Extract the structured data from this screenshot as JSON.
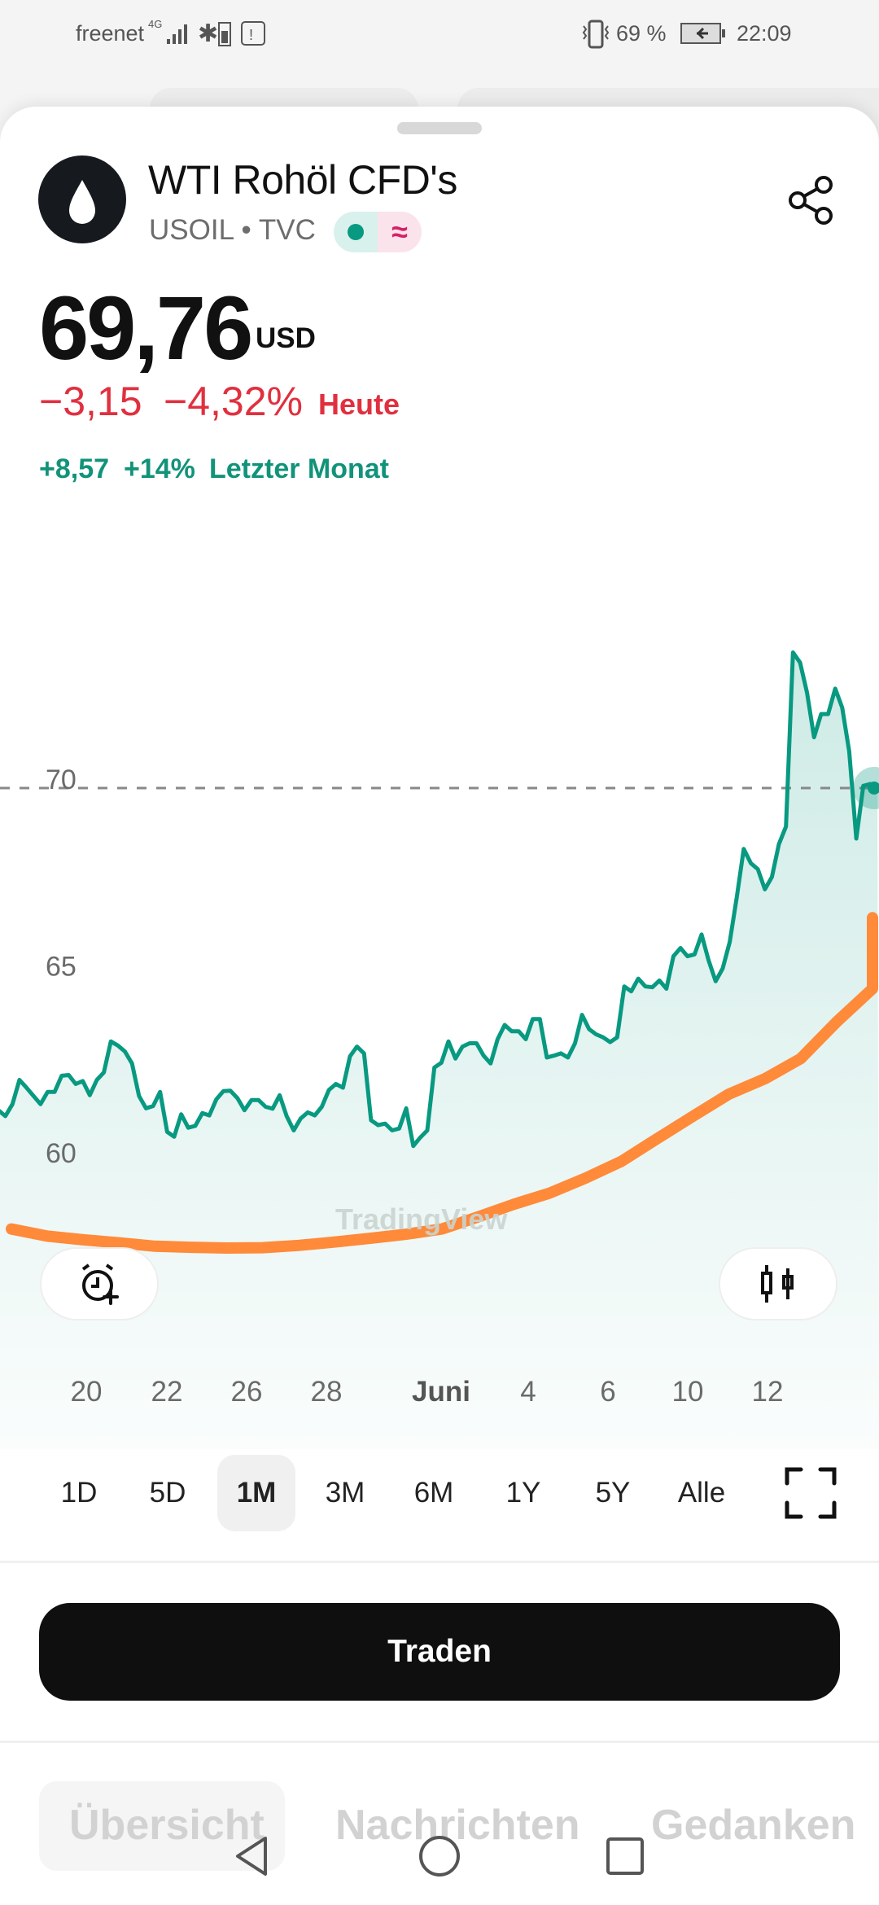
{
  "status_bar": {
    "carrier": "freenet",
    "network": "4G",
    "battery": "69 %",
    "time": "22:09"
  },
  "header": {
    "title": "WTI Rohöl CFD's",
    "symbol": "USOIL",
    "separator": "•",
    "exchange": "TVC",
    "logo_icon": "oil-drop-icon",
    "badge_icon": "approx-icon",
    "badge_text": "≈"
  },
  "quote": {
    "price": "69,76",
    "currency": "USD",
    "change_today": "−3,15",
    "change_today_pct": "−4,32%",
    "today_label": "Heute",
    "change_month": "+8,57",
    "change_month_pct": "+14%",
    "month_label": "Letzter Monat"
  },
  "colors": {
    "up": "#11937a",
    "down": "#e0303f",
    "line": "#089981",
    "ma": "#ff8a3a"
  },
  "chart_data": {
    "type": "line",
    "y_ticks": [
      "70",
      "65",
      "60"
    ],
    "y_tick_values": [
      70,
      65,
      60
    ],
    "x_ticks": [
      "20",
      "22",
      "26",
      "28",
      "Juni",
      "4",
      "6",
      "10",
      "12"
    ],
    "current_price": 69.76,
    "watermark": "TradingView",
    "series": [
      {
        "values": [
          61.14,
          60.98,
          61.3,
          61.95,
          61.74,
          61.52,
          61.3,
          61.63,
          61.63,
          62.06,
          62.08,
          61.84,
          61.92,
          61.54,
          61.95,
          62.15,
          62.98,
          62.87,
          62.71,
          62.39,
          61.52,
          61.19,
          61.25,
          61.63,
          60.56,
          60.43,
          61.03,
          60.67,
          60.72,
          61.06,
          61.0,
          61.43,
          61.65,
          61.66,
          61.46,
          61.14,
          61.41,
          61.41,
          61.23,
          61.18,
          61.54,
          60.98,
          60.6,
          60.92,
          61.08,
          61.0,
          61.23,
          61.68,
          61.84,
          61.74,
          62.58,
          62.84,
          62.66,
          60.87,
          60.74,
          60.78,
          60.6,
          60.65,
          61.19,
          60.18,
          60.41,
          60.6,
          62.28,
          62.41,
          62.98,
          62.52,
          62.84,
          62.93,
          62.93,
          62.6,
          62.39,
          63.04,
          63.42,
          63.25,
          63.25,
          63.04,
          63.58,
          63.58,
          62.55,
          62.6,
          62.66,
          62.55,
          62.93,
          63.69,
          63.31,
          63.17,
          63.09,
          62.96,
          63.09,
          64.45,
          64.32,
          64.66,
          64.45,
          64.43,
          64.61,
          64.39,
          65.26,
          65.48,
          65.26,
          65.31,
          65.84,
          65.15,
          64.59,
          64.93,
          65.64,
          66.83,
          68.13,
          67.75,
          67.59,
          67.05,
          67.38,
          68.26,
          68.73,
          73.39,
          73.12,
          72.31,
          71.12,
          71.74,
          71.74,
          72.42,
          71.91,
          70.74,
          68.41,
          69.82,
          69.87,
          69.76
        ]
      },
      {
        "values": [
          57.96,
          57.77,
          57.67,
          57.59,
          57.5,
          57.47,
          57.45,
          57.46,
          57.52,
          57.61,
          57.71,
          57.82,
          57.96,
          58.28,
          58.62,
          58.92,
          59.32,
          59.77,
          60.38,
          60.98,
          61.57,
          61.98,
          62.52,
          63.5,
          64.39,
          66.29
        ]
      }
    ]
  },
  "chart_tools": {
    "alert_icon": "alarm-plus-icon",
    "chart_type_icon": "candlestick-icon"
  },
  "timeframes": [
    "1D",
    "5D",
    "1M",
    "3M",
    "6M",
    "1Y",
    "5Y",
    "Alle"
  ],
  "selected_timeframe": "1M",
  "fullscreen_icon": "fullscreen-icon",
  "trade_button": "Traden",
  "tabs": [
    "Übersicht",
    "Nachrichten",
    "Gedanken"
  ],
  "nav": {
    "back": "back-icon",
    "home": "home-icon",
    "recents": "recents-icon"
  }
}
